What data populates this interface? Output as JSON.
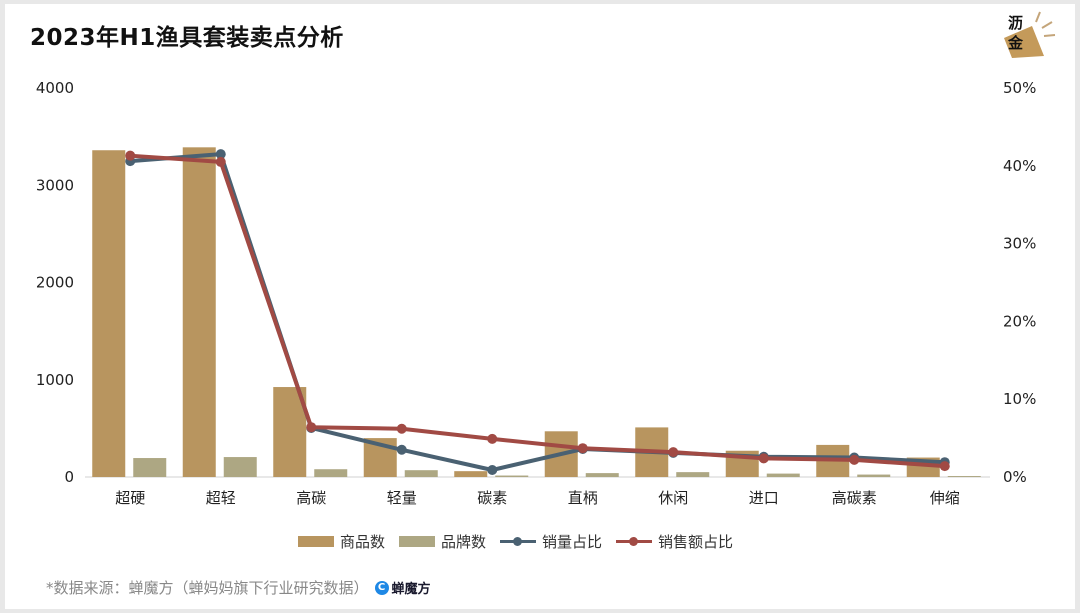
{
  "title": "2023年H1渔具套装卖点分析",
  "logo": {
    "line1": "沥",
    "line2": "金",
    "icon": "lijin-brand-logo"
  },
  "legend": [
    {
      "label": "商品数",
      "type": "bar",
      "color": "#b8955f"
    },
    {
      "label": "品牌数",
      "type": "bar",
      "color": "#ada783"
    },
    {
      "label": "销量占比",
      "type": "line",
      "color": "#4a6172"
    },
    {
      "label": "销售额占比",
      "type": "line",
      "color": "#a14a44"
    }
  ],
  "source": {
    "text": "*数据来源：蝉魔方（蝉妈妈旗下行业研究数据）",
    "brand": "蝉魔方",
    "brand_icon": "C"
  },
  "axes": {
    "left_ticks": [
      "0",
      "1000",
      "2000",
      "3000",
      "4000"
    ],
    "right_ticks": [
      "0%",
      "10%",
      "20%",
      "30%",
      "40%",
      "50%"
    ]
  },
  "chart_data": {
    "type": "bar",
    "title": "2023年H1渔具套装卖点分析",
    "xlabel": "",
    "ylabel": "",
    "categories": [
      "超硬",
      "超轻",
      "高碳",
      "轻量",
      "碳素",
      "直柄",
      "休闲",
      "进口",
      "高碳素",
      "伸缩"
    ],
    "series": [
      {
        "name": "商品数",
        "type": "bar",
        "axis": "left",
        "color": "#b8955f",
        "values": [
          3360,
          3390,
          925,
          400,
          60,
          470,
          510,
          270,
          330,
          200
        ]
      },
      {
        "name": "品牌数",
        "type": "bar",
        "axis": "left",
        "color": "#ada783",
        "values": [
          195,
          205,
          80,
          70,
          15,
          40,
          50,
          35,
          25,
          10
        ]
      },
      {
        "name": "销量占比",
        "type": "line",
        "axis": "right",
        "color": "#4a6172",
        "values": [
          40.6,
          41.5,
          6.3,
          3.5,
          0.9,
          3.6,
          3.1,
          2.6,
          2.5,
          1.9
        ]
      },
      {
        "name": "销售额占比",
        "type": "line",
        "axis": "right",
        "color": "#a14a44",
        "values": [
          41.3,
          40.5,
          6.4,
          6.2,
          4.9,
          3.7,
          3.2,
          2.4,
          2.2,
          1.4
        ]
      }
    ],
    "ylim": [
      0,
      4000
    ],
    "y2lim": [
      0,
      50
    ],
    "y2_unit": "%",
    "grid": false,
    "legend_position": "bottom"
  }
}
